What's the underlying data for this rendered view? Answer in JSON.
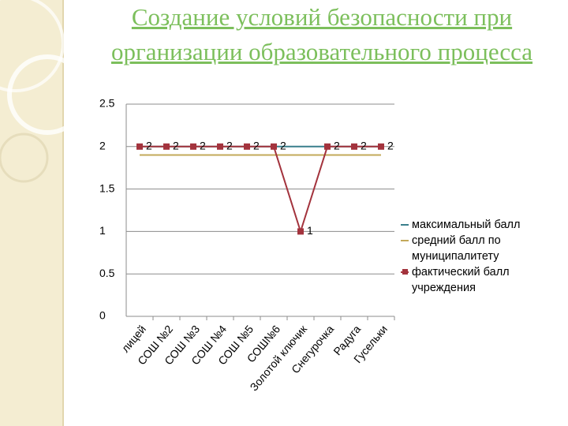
{
  "chart_data": {
    "type": "line",
    "title": "Создание условий безопасности при организации образовательного процесса",
    "categories": [
      "лицей",
      "СОШ №2",
      "СОШ №3",
      "СОШ №4",
      "СОШ №5",
      "СОШ№6",
      "Золотой ключик",
      "Снегурочка",
      "Радуга",
      "Гусельки"
    ],
    "series": [
      {
        "name": "максимальный балл",
        "color": "#3a7f8c",
        "values": [
          2,
          2,
          2,
          2,
          2,
          2,
          2,
          2,
          2,
          2
        ]
      },
      {
        "name": "средний балл по муниципалитету",
        "color": "#c3a95a",
        "values": [
          1.9,
          1.9,
          1.9,
          1.9,
          1.9,
          1.9,
          1.9,
          1.9,
          1.9,
          1.9
        ]
      },
      {
        "name": "фактический балл учреждения",
        "color": "#a3333d",
        "values": [
          2,
          2,
          2,
          2,
          2,
          2,
          1,
          2,
          2,
          2
        ]
      }
    ],
    "ylim": [
      0,
      2.5
    ],
    "yticks": [
      0,
      0.5,
      1,
      1.5,
      2,
      2.5
    ],
    "grid": true
  }
}
